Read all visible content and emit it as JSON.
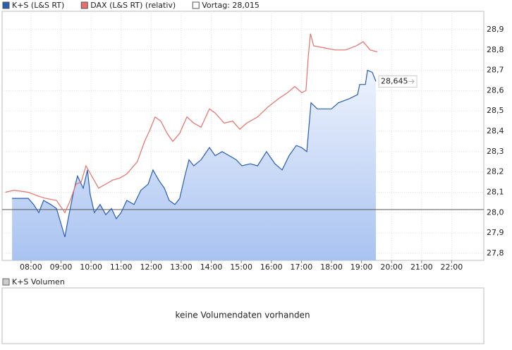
{
  "chart_data": {
    "type": "line",
    "series": [
      {
        "name": "K+S (L&S RT)",
        "color": "#2a5db0",
        "area": true,
        "x": [
          7.37,
          7.91,
          8.09,
          8.26,
          8.42,
          8.66,
          8.85,
          9.03,
          9.13,
          9.24,
          9.43,
          9.55,
          9.74,
          9.88,
          9.97,
          10.11,
          10.3,
          10.49,
          10.68,
          10.84,
          11.0,
          11.19,
          11.43,
          11.66,
          11.9,
          12.06,
          12.25,
          12.44,
          12.6,
          12.79,
          12.95,
          13.12,
          13.26,
          13.42,
          13.66,
          13.94,
          14.13,
          14.36,
          14.6,
          14.83,
          15.02,
          15.3,
          15.54,
          15.84,
          16.12,
          16.36,
          16.59,
          16.83,
          17.01,
          17.18,
          17.25,
          17.32,
          17.53,
          17.77,
          18.0,
          18.23,
          18.59,
          18.87,
          18.94,
          19.13,
          19.2,
          19.36,
          19.48
        ],
        "values": [
          28.07,
          28.07,
          28.04,
          28.0,
          28.06,
          28.04,
          28.02,
          27.93,
          27.88,
          27.97,
          28.11,
          28.18,
          28.12,
          28.21,
          28.09,
          28.0,
          28.04,
          27.99,
          28.02,
          27.97,
          28.0,
          28.06,
          28.04,
          28.11,
          28.14,
          28.21,
          28.16,
          28.12,
          28.06,
          28.04,
          28.07,
          28.18,
          28.26,
          28.23,
          28.26,
          28.32,
          28.28,
          28.3,
          28.28,
          28.26,
          28.23,
          28.24,
          28.23,
          28.3,
          28.24,
          28.21,
          28.28,
          28.33,
          28.32,
          28.3,
          28.42,
          28.54,
          28.51,
          28.51,
          28.51,
          28.54,
          28.56,
          28.58,
          28.63,
          28.63,
          28.7,
          28.69,
          28.645
        ]
      },
      {
        "name": "DAX (L&S RT) (relativ)",
        "color": "#e8706a",
        "x": [
          7.15,
          7.44,
          7.91,
          8.26,
          8.49,
          8.85,
          9.13,
          9.31,
          9.5,
          9.67,
          9.83,
          10.02,
          10.25,
          10.49,
          10.72,
          10.96,
          11.19,
          11.54,
          11.78,
          11.94,
          12.13,
          12.32,
          12.53,
          12.72,
          12.95,
          13.19,
          13.42,
          13.66,
          13.94,
          14.13,
          14.43,
          14.71,
          14.95,
          15.18,
          15.54,
          15.89,
          16.24,
          16.54,
          16.78,
          17.01,
          17.15,
          17.23,
          17.3,
          17.41,
          17.77,
          18.12,
          18.47,
          18.82,
          19.06,
          19.29,
          19.53
        ],
        "values": [
          28.1,
          28.11,
          28.1,
          28.08,
          28.07,
          28.06,
          28.0,
          28.06,
          28.14,
          28.15,
          28.23,
          28.18,
          28.12,
          28.14,
          28.16,
          28.17,
          28.19,
          28.25,
          28.35,
          28.4,
          28.47,
          28.45,
          28.39,
          28.35,
          28.39,
          28.47,
          28.44,
          28.42,
          28.51,
          28.49,
          28.44,
          28.45,
          28.41,
          28.44,
          28.47,
          28.52,
          28.56,
          28.59,
          28.62,
          28.59,
          28.6,
          28.77,
          28.88,
          28.82,
          28.81,
          28.8,
          28.8,
          28.82,
          28.84,
          28.8,
          28.79
        ]
      }
    ],
    "previous_close": {
      "value": 28.015,
      "label": "Vortag: 28,015",
      "color": "#555555"
    },
    "last_value": {
      "value": 28.645,
      "label": "28,645"
    },
    "xlim": [
      7.04,
      23.07
    ],
    "xticks": [
      {
        "value": 8,
        "label": "08:00"
      },
      {
        "value": 9,
        "label": "09:00"
      },
      {
        "value": 10,
        "label": "10:00"
      },
      {
        "value": 11,
        "label": "11:00"
      },
      {
        "value": 12,
        "label": "12:00"
      },
      {
        "value": 13,
        "label": "13:00"
      },
      {
        "value": 14,
        "label": "14:00"
      },
      {
        "value": 15,
        "label": "15:00"
      },
      {
        "value": 16,
        "label": "16:00"
      },
      {
        "value": 17,
        "label": "17:00"
      },
      {
        "value": 18,
        "label": "18:00"
      },
      {
        "value": 19,
        "label": "19:00"
      },
      {
        "value": 20,
        "label": "20:00"
      },
      {
        "value": 21,
        "label": "21:00"
      },
      {
        "value": 22,
        "label": "22:00"
      }
    ],
    "ylim": [
      27.765,
      28.99
    ],
    "yticks": [
      {
        "value": 27.8,
        "label": "27,8"
      },
      {
        "value": 27.9,
        "label": "27,9"
      },
      {
        "value": 28.0,
        "label": "28,0"
      },
      {
        "value": 28.1,
        "label": "28,1"
      },
      {
        "value": 28.2,
        "label": "28,2"
      },
      {
        "value": 28.3,
        "label": "28,3"
      },
      {
        "value": 28.4,
        "label": "28,4"
      },
      {
        "value": 28.5,
        "label": "28,5"
      },
      {
        "value": 28.6,
        "label": "28,6"
      },
      {
        "value": 28.7,
        "label": "28,7"
      },
      {
        "value": 28.8,
        "label": "28,8"
      },
      {
        "value": 28.9,
        "label": "28,9"
      }
    ],
    "grid": true,
    "volume_panel": {
      "title": "K+S Volumen",
      "message": "keine Volumendaten vorhanden"
    }
  }
}
